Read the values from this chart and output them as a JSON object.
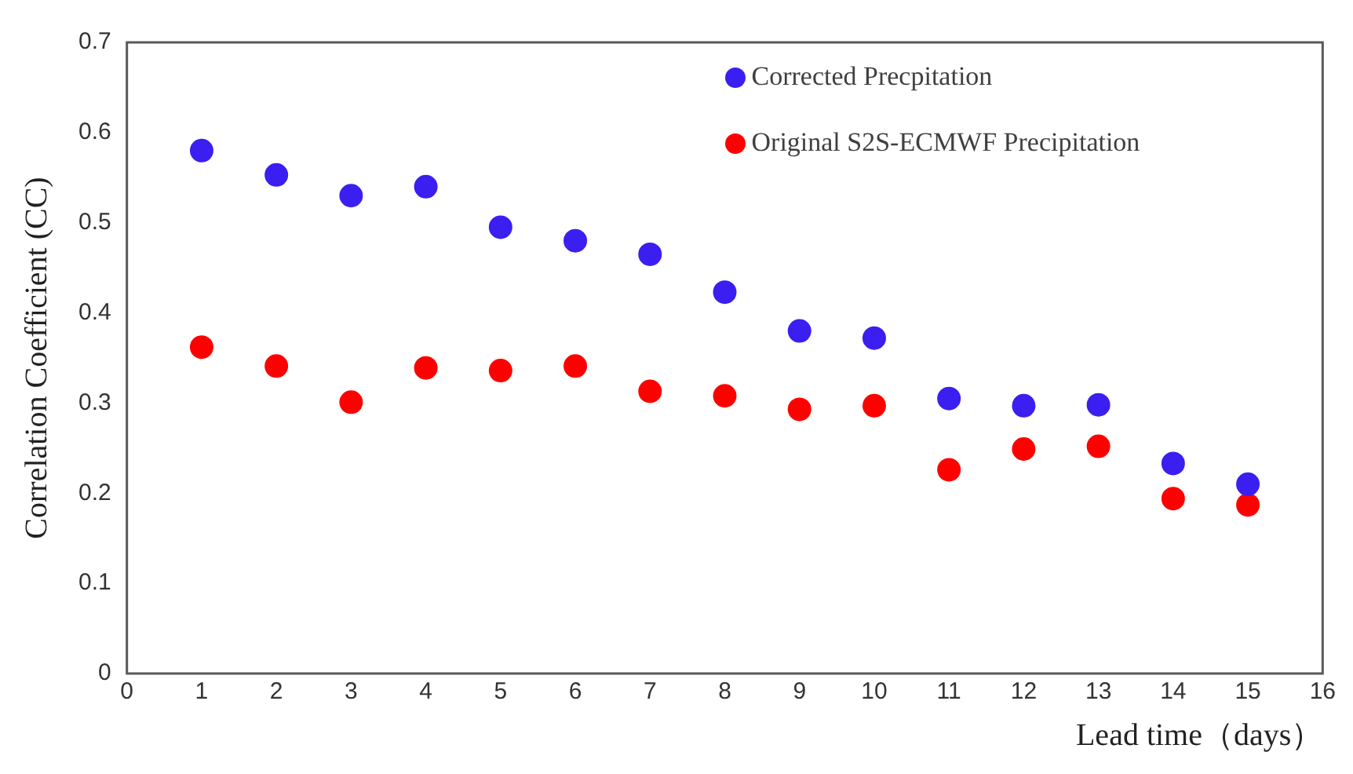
{
  "chart_data": {
    "type": "scatter",
    "xlabel": "Lead time（days）",
    "ylabel": "Correlation Coefficient (CC)",
    "x": [
      1,
      2,
      3,
      4,
      5,
      6,
      7,
      8,
      9,
      10,
      11,
      12,
      13,
      14,
      15
    ],
    "series": [
      {
        "name": "Corrected Precpitation",
        "color": "#3b1ff0",
        "values": [
          0.58,
          0.553,
          0.53,
          0.54,
          0.495,
          0.48,
          0.465,
          0.423,
          0.38,
          0.372,
          0.305,
          0.297,
          0.298,
          0.233,
          0.21
        ]
      },
      {
        "name": "Original S2S-ECMWF Precipitation",
        "color": "#ff0000",
        "values": [
          0.362,
          0.341,
          0.301,
          0.339,
          0.336,
          0.341,
          0.313,
          0.308,
          0.293,
          0.297,
          0.226,
          0.249,
          0.252,
          0.194,
          0.187
        ]
      }
    ],
    "xlim": [
      0,
      16
    ],
    "xticks": [
      0,
      1,
      2,
      3,
      4,
      5,
      6,
      7,
      8,
      9,
      10,
      11,
      12,
      13,
      14,
      15,
      16
    ],
    "ylim": [
      0,
      0.7
    ],
    "yticks": [
      0,
      0.1,
      0.2,
      0.3,
      0.4,
      0.5,
      0.6,
      0.7
    ],
    "grid": false,
    "legend": "top right",
    "marker": "circle"
  }
}
